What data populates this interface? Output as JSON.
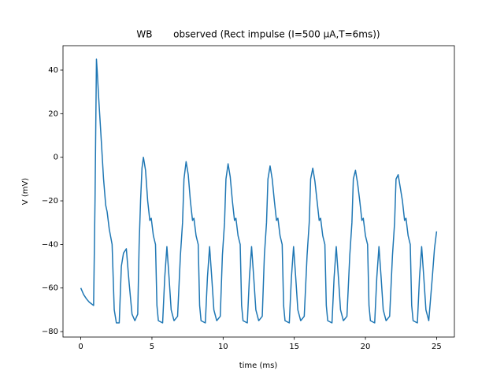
{
  "chart_data": {
    "type": "line",
    "title": "WB       observed (Rect impulse (I=500 µA,T=6ms))",
    "xlabel": "time (ms)",
    "ylabel": "V (mV)",
    "color": "#1f77b4",
    "xlim": [
      -1.25,
      26.25
    ],
    "ylim": [
      -82.5,
      51.2
    ],
    "xticks": [
      0,
      5,
      10,
      15,
      20,
      25
    ],
    "yticks": [
      {
        "value": -80,
        "label": "−80"
      },
      {
        "value": -60,
        "label": "−60"
      },
      {
        "value": -40,
        "label": "−40"
      },
      {
        "value": -20,
        "label": "−20"
      },
      0,
      20,
      40
    ],
    "x": [
      0,
      0.2,
      0.4,
      0.6,
      0.8,
      0.9,
      1.0,
      1.1,
      1.15,
      1.25,
      1.4,
      1.6,
      1.75,
      1.85,
      2.0,
      2.2,
      2.35,
      2.5,
      2.7,
      2.85,
      3.0,
      3.2,
      3.4,
      3.6,
      3.8,
      4.0,
      4.1,
      4.2,
      4.3,
      4.4,
      4.55,
      4.7,
      4.85,
      4.95,
      5.1,
      5.25,
      5.35,
      5.45,
      5.75,
      5.9,
      6.05,
      6.2,
      6.35,
      6.55,
      6.8,
      7.0,
      7.15,
      7.25,
      7.4,
      7.55,
      7.7,
      7.85,
      7.95,
      8.1,
      8.25,
      8.35,
      8.45,
      8.75,
      8.9,
      9.05,
      9.2,
      9.35,
      9.55,
      9.8,
      9.95,
      10.1,
      10.2,
      10.35,
      10.5,
      10.65,
      10.8,
      10.9,
      11.05,
      11.2,
      11.3,
      11.4,
      11.7,
      11.85,
      12.0,
      12.15,
      12.3,
      12.5,
      12.75,
      12.9,
      13.05,
      13.15,
      13.3,
      13.45,
      13.6,
      13.75,
      13.85,
      14.0,
      14.15,
      14.25,
      14.35,
      14.65,
      14.8,
      14.95,
      15.1,
      15.25,
      15.45,
      15.7,
      15.9,
      16.05,
      16.15,
      16.3,
      16.45,
      16.6,
      16.75,
      16.85,
      17.0,
      17.15,
      17.25,
      17.35,
      17.65,
      17.8,
      17.95,
      18.1,
      18.25,
      18.45,
      18.7,
      18.9,
      19.05,
      19.15,
      19.3,
      19.45,
      19.6,
      19.75,
      19.85,
      20.0,
      20.15,
      20.25,
      20.35,
      20.65,
      20.8,
      20.95,
      21.1,
      21.25,
      21.45,
      21.7,
      21.9,
      22.05,
      22.15,
      22.3,
      22.45,
      22.6,
      22.75,
      22.85,
      23.0,
      23.15,
      23.25,
      23.35,
      23.65,
      23.8,
      23.95,
      24.1,
      24.25,
      24.45,
      24.7,
      24.85,
      25.0
    ],
    "values": [
      -60,
      -63,
      -65,
      -66.5,
      -67.5,
      -68,
      -20,
      45,
      40,
      28,
      12,
      -10,
      -22,
      -25,
      -33,
      -40,
      -70,
      -76,
      -76,
      -50,
      -44,
      -42,
      -58,
      -72,
      -75,
      -72,
      -40,
      -20,
      -5,
      0,
      -6,
      -20,
      -29,
      -28,
      -36,
      -40,
      -68,
      -75,
      -76,
      -55,
      -41,
      -55,
      -70,
      -75,
      -73,
      -45,
      -30,
      -10,
      -2,
      -8,
      -20,
      -29,
      -28,
      -36,
      -40,
      -68,
      -75,
      -76,
      -55,
      -41,
      -55,
      -70,
      -75,
      -73,
      -45,
      -30,
      -10,
      -3,
      -9,
      -20,
      -29,
      -28,
      -36,
      -40,
      -68,
      -75,
      -76,
      -55,
      -41,
      -55,
      -70,
      -75,
      -73,
      -45,
      -30,
      -10,
      -4,
      -10,
      -20,
      -29,
      -28,
      -36,
      -40,
      -68,
      -75,
      -76,
      -55,
      -41,
      -55,
      -70,
      -75,
      -73,
      -45,
      -30,
      -10,
      -5,
      -11,
      -20,
      -29,
      -28,
      -36,
      -40,
      -68,
      -75,
      -76,
      -55,
      -41,
      -55,
      -70,
      -75,
      -73,
      -45,
      -30,
      -10,
      -6,
      -12,
      -20,
      -29,
      -28,
      -36,
      -40,
      -68,
      -75,
      -76,
      -55,
      -41,
      -55,
      -70,
      -75,
      -73,
      -45,
      -30,
      -10,
      -8,
      -14,
      -20,
      -29,
      -28,
      -36,
      -40,
      -68,
      -75,
      -76,
      -55,
      -41,
      -55,
      -70,
      -75,
      -55,
      -42,
      -34
    ]
  }
}
